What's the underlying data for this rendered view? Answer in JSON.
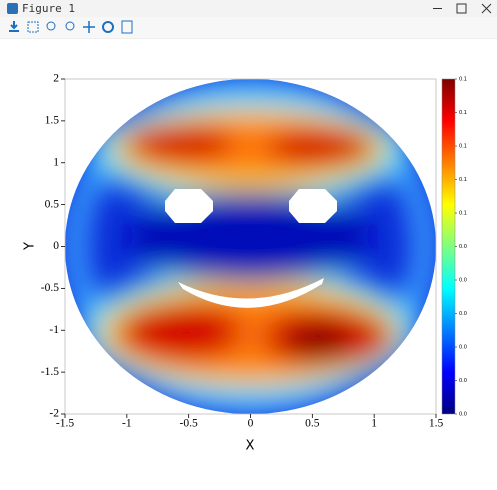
{
  "window_title": "Figure 1",
  "chart_data": {
    "type": "heatmap",
    "xlabel": "X",
    "ylabel": "Y",
    "xlim": [
      -1.5,
      1.5
    ],
    "xticks": [
      -1.5,
      -1,
      -0.5,
      0,
      0.5,
      1,
      1.5
    ],
    "ylim": [
      -2,
      2
    ],
    "yticks": [
      -2,
      -1.5,
      -1,
      -0.5,
      0,
      0.5,
      1,
      1.5,
      2
    ],
    "colormap": [
      "#00007f",
      "#0000ff",
      "#007fff",
      "#00ffff",
      "#7fff7f",
      "#ffff00",
      "#ff7f00",
      "#ff0000",
      "#7f0000"
    ],
    "colorbar_lim": [
      0,
      0.095
    ],
    "colorbar_ticks": [
      {
        "value": 0,
        "label": "0.0"
      },
      {
        "value": 0.0095,
        "label": "0.0"
      },
      {
        "value": 0.019,
        "label": "0.0"
      },
      {
        "value": 0.0285,
        "label": "0.0"
      },
      {
        "value": 0.038,
        "label": "0.0"
      },
      {
        "value": 0.0475,
        "label": "0.0"
      },
      {
        "value": 0.057,
        "label": "0.1"
      },
      {
        "value": 0.0665,
        "label": "0.1"
      },
      {
        "value": 0.076,
        "label": "0.1"
      },
      {
        "value": 0.0855,
        "label": "0.1"
      },
      {
        "value": 0.095,
        "label": "0.1"
      }
    ]
  }
}
